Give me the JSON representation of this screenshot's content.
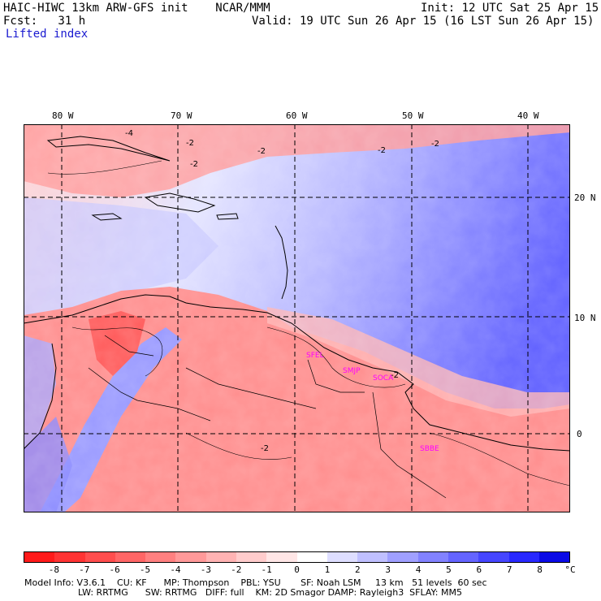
{
  "header": {
    "model": "HAIC-HIWC 13km ARW-GFS init    NCAR/MMM",
    "fcst": "Fcst:   31 h",
    "init": "Init: 12 UTC Sat 25 Apr 15",
    "valid": "Valid: 19 UTC Sun 26 Apr 15 (16 LST Sun 26 Apr 15)",
    "field": "Lifted index"
  },
  "axes": {
    "lon_labels": [
      "80 W",
      "70 W",
      "60 W",
      "50 W",
      "40 W"
    ],
    "lat_labels": [
      "20 N",
      "10 N",
      "0"
    ]
  },
  "stations": [
    "SFEL",
    "SMJP",
    "SOCA",
    "SBBE"
  ],
  "contour_labels": [
    "-4",
    "-2",
    "-2",
    "-2",
    "-2",
    "-2",
    "-2",
    "-2"
  ],
  "colorbar": {
    "ticks": [
      "-8",
      "-7",
      "-6",
      "-5",
      "-4",
      "-3",
      "-2",
      "-1",
      "0",
      "1",
      "2",
      "3",
      "4",
      "5",
      "6",
      "7",
      "8"
    ],
    "unit": "°C",
    "colors": [
      "#ff1a1a",
      "#ff3333",
      "#ff4d4d",
      "#ff6666",
      "#ff8080",
      "#ff9999",
      "#ffb3b3",
      "#ffcccc",
      "#ffe6e6",
      "#ffffff",
      "#dedeff",
      "#c0c0ff",
      "#a0a0ff",
      "#8282ff",
      "#6464ff",
      "#4646ff",
      "#2828ff",
      "#0a0ae6"
    ]
  },
  "footer": {
    "line1": "Model Info: V3.6.1    CU: KF      MP: Thompson    PBL: YSU       SF: Noah LSM     13 km   51 levels  60 sec",
    "line2": "LW: RRTMG      SW: RRTMG   DIFF: full    KM: 2D Smagor DAMP: Rayleigh3  SFLAY: MM5"
  }
}
